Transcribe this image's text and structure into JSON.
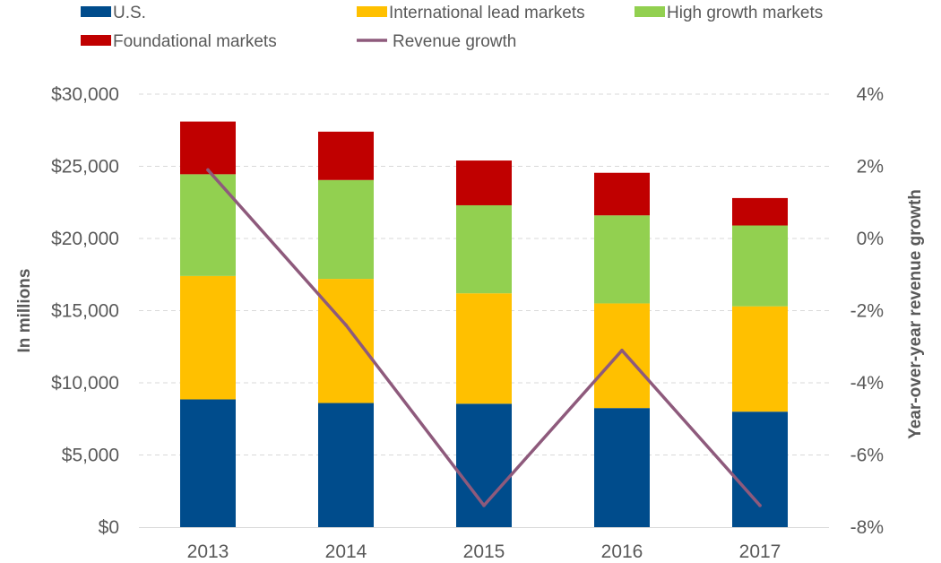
{
  "chart_data": {
    "type": "bar",
    "stacked": true,
    "categories": [
      "2013",
      "2014",
      "2015",
      "2016",
      "2017"
    ],
    "series": [
      {
        "name": "U.S.",
        "color": "#004C8C",
        "values": [
          8850,
          8600,
          8550,
          8250,
          8000
        ]
      },
      {
        "name": "International lead markets",
        "color": "#FFC000",
        "values": [
          8550,
          8600,
          7650,
          7250,
          7300
        ]
      },
      {
        "name": "High growth markets",
        "color": "#92D050",
        "values": [
          7050,
          6850,
          6100,
          6100,
          5600
        ]
      },
      {
        "name": "Foundational markets",
        "color": "#C00000",
        "values": [
          3650,
          3350,
          3100,
          2950,
          1900
        ]
      }
    ],
    "line_series": {
      "name": "Revenue growth",
      "color": "#8E5A7C",
      "axis": "right",
      "values": [
        1.9,
        -2.4,
        -7.4,
        -3.1,
        -7.4
      ]
    },
    "ylabel": "In millions",
    "ylim": [
      0,
      30000
    ],
    "yticks": [
      "$0",
      "$5,000",
      "$10,000",
      "$15,000",
      "$20,000",
      "$25,000",
      "$30,000"
    ],
    "y2label": "Year-over-year revenue growth",
    "y2lim": [
      -8,
      4
    ],
    "y2ticks": [
      "-8%",
      "-6%",
      "-4%",
      "-2%",
      "0%",
      "2%",
      "4%"
    ],
    "grid": true,
    "legend_position": "top"
  }
}
